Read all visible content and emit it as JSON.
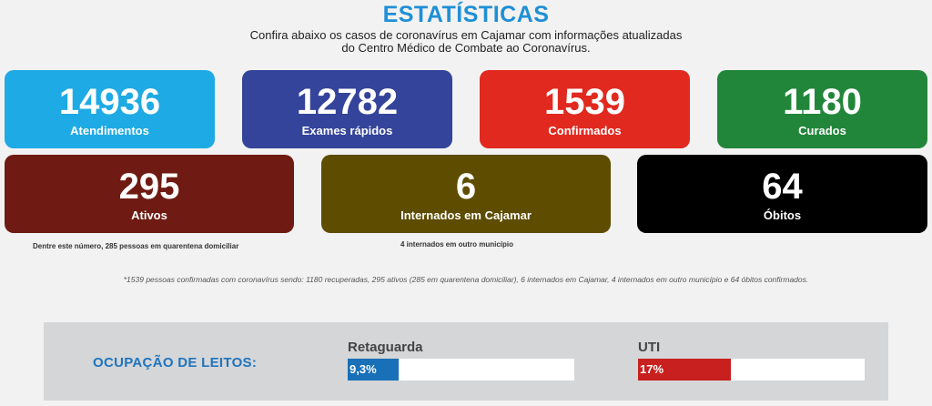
{
  "header": {
    "title": "ESTATÍSTICAS",
    "subtitle_line1": "Confira abaixo os casos de coronavírus em Cajamar com informações atualizadas",
    "subtitle_line2": "do Centro Médico de Combate ao Coronavírus."
  },
  "stats": {
    "atendimentos": {
      "value": "14936",
      "label": "Atendimentos",
      "color": "#1eaae4"
    },
    "exames": {
      "value": "12782",
      "label": "Exames rápidos",
      "color": "#34449a"
    },
    "confirmados": {
      "value": "1539",
      "label": "Confirmados",
      "color": "#e1291f"
    },
    "curados": {
      "value": "1180",
      "label": "Curados",
      "color": "#22863a"
    },
    "ativos": {
      "value": "295",
      "label": "Ativos",
      "color": "#6f1a12",
      "note": "Dentre este número, 285 pessoas em quarentena domiciliar"
    },
    "internados": {
      "value": "6",
      "label": "Internados em Cajamar",
      "color": "#5e4c00",
      "note": "4 internados em outro município"
    },
    "obitos": {
      "value": "64",
      "label": "Óbitos",
      "color": "#000000"
    }
  },
  "footnote": "*1539 pessoas confirmadas com coronavírus sendo: 1180 recuperadas, 295 ativos (285 em quarentena domiciliar), 6 internados em Cajamar, 4 internados em outro município e 64 óbitos confirmados.",
  "beds": {
    "label": "OCUPAÇÃO DE LEITOS:",
    "retaguarda": {
      "name": "Retaguarda",
      "value_text": "9,3%",
      "percent": 9.3,
      "color": "#1870b8"
    },
    "uti": {
      "name": "UTI",
      "value_text": "17%",
      "percent": 17,
      "color": "#c8201e"
    }
  }
}
